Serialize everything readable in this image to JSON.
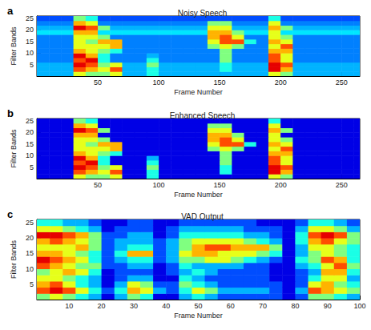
{
  "chart_data": [
    {
      "type": "heatmap",
      "panel_label": "a",
      "title": "Noisy Speech",
      "x_label": "Frame Number",
      "y_label": "Filter Bands",
      "xlim": [
        0,
        265
      ],
      "xticks": [
        50,
        100,
        150,
        200,
        250
      ],
      "ylim": [
        0,
        26
      ],
      "yticks": [
        5,
        10,
        15,
        20,
        25
      ],
      "zlim": [
        0,
        1
      ],
      "x": [
        5,
        15,
        25,
        35,
        45,
        55,
        65,
        75,
        85,
        95,
        105,
        115,
        125,
        135,
        145,
        155,
        165,
        175,
        185,
        195,
        205,
        215,
        225,
        235,
        245,
        255,
        265
      ],
      "y": [
        1,
        3,
        5,
        7,
        9,
        11,
        13,
        15,
        17,
        19,
        21,
        23,
        25
      ],
      "z": [
        [
          0.3,
          0.3,
          0.3,
          0.6,
          0.5,
          0.5,
          0.6,
          0.3,
          0.3,
          0.4,
          0.3,
          0.3,
          0.3,
          0.3,
          0.3,
          0.3,
          0.3,
          0.3,
          0.3,
          0.6,
          0.5,
          0.3,
          0.3,
          0.3,
          0.3,
          0.3,
          0.3
        ],
        [
          0.3,
          0.3,
          0.3,
          0.8,
          0.7,
          0.6,
          0.8,
          0.3,
          0.3,
          0.4,
          0.3,
          0.3,
          0.3,
          0.3,
          0.3,
          0.4,
          0.3,
          0.3,
          0.3,
          0.9,
          0.7,
          0.3,
          0.3,
          0.3,
          0.3,
          0.3,
          0.3
        ],
        [
          0.3,
          0.3,
          0.3,
          0.9,
          0.8,
          0.5,
          0.6,
          0.3,
          0.3,
          0.5,
          0.3,
          0.3,
          0.3,
          0.3,
          0.3,
          0.4,
          0.3,
          0.3,
          0.3,
          0.9,
          0.8,
          0.3,
          0.3,
          0.3,
          0.3,
          0.3,
          0.3
        ],
        [
          0.25,
          0.25,
          0.25,
          0.8,
          0.9,
          0.4,
          0.25,
          0.25,
          0.25,
          0.4,
          0.25,
          0.25,
          0.25,
          0.25,
          0.25,
          0.5,
          0.25,
          0.25,
          0.25,
          0.8,
          0.6,
          0.25,
          0.25,
          0.25,
          0.25,
          0.25,
          0.25
        ],
        [
          0.25,
          0.25,
          0.25,
          0.9,
          0.7,
          0.4,
          0.25,
          0.25,
          0.25,
          0.3,
          0.25,
          0.25,
          0.25,
          0.25,
          0.25,
          0.5,
          0.25,
          0.25,
          0.25,
          0.8,
          0.6,
          0.25,
          0.25,
          0.25,
          0.25,
          0.25,
          0.25
        ],
        [
          0.25,
          0.25,
          0.25,
          0.7,
          0.6,
          0.5,
          0.4,
          0.25,
          0.25,
          0.25,
          0.25,
          0.25,
          0.25,
          0.25,
          0.25,
          0.5,
          0.25,
          0.25,
          0.25,
          0.7,
          0.7,
          0.25,
          0.25,
          0.25,
          0.25,
          0.25,
          0.25
        ],
        [
          0.25,
          0.25,
          0.25,
          0.6,
          0.6,
          0.6,
          0.7,
          0.25,
          0.25,
          0.25,
          0.25,
          0.25,
          0.25,
          0.25,
          0.5,
          0.6,
          0.5,
          0.25,
          0.25,
          0.6,
          0.8,
          0.25,
          0.25,
          0.25,
          0.25,
          0.25,
          0.25
        ],
        [
          0.25,
          0.25,
          0.25,
          0.6,
          0.5,
          0.7,
          0.7,
          0.25,
          0.25,
          0.25,
          0.25,
          0.25,
          0.25,
          0.25,
          0.6,
          0.8,
          0.8,
          0.4,
          0.25,
          0.7,
          0.6,
          0.25,
          0.25,
          0.25,
          0.25,
          0.25,
          0.25
        ],
        [
          0.25,
          0.25,
          0.25,
          0.6,
          0.6,
          0.5,
          0.25,
          0.25,
          0.25,
          0.25,
          0.25,
          0.25,
          0.25,
          0.25,
          0.7,
          0.8,
          0.6,
          0.25,
          0.25,
          0.6,
          0.5,
          0.25,
          0.25,
          0.25,
          0.25,
          0.25,
          0.25
        ],
        [
          0.35,
          0.35,
          0.35,
          0.7,
          0.7,
          0.35,
          0.35,
          0.35,
          0.35,
          0.35,
          0.35,
          0.35,
          0.35,
          0.35,
          0.7,
          0.7,
          0.5,
          0.35,
          0.35,
          0.6,
          0.35,
          0.35,
          0.35,
          0.35,
          0.35,
          0.35,
          0.35
        ],
        [
          0.3,
          0.3,
          0.3,
          0.9,
          0.8,
          0.5,
          0.3,
          0.3,
          0.3,
          0.3,
          0.3,
          0.3,
          0.3,
          0.3,
          0.6,
          0.6,
          0.3,
          0.3,
          0.3,
          0.7,
          0.5,
          0.3,
          0.3,
          0.3,
          0.3,
          0.3,
          0.3
        ],
        [
          0.25,
          0.25,
          0.25,
          0.7,
          0.6,
          0.25,
          0.25,
          0.25,
          0.25,
          0.25,
          0.25,
          0.25,
          0.25,
          0.25,
          0.5,
          0.5,
          0.25,
          0.25,
          0.25,
          0.6,
          0.25,
          0.25,
          0.25,
          0.25,
          0.25,
          0.25,
          0.25
        ],
        [
          0.2,
          0.2,
          0.2,
          0.5,
          0.4,
          0.2,
          0.2,
          0.2,
          0.2,
          0.2,
          0.2,
          0.2,
          0.2,
          0.2,
          0.2,
          0.2,
          0.2,
          0.2,
          0.2,
          0.4,
          0.2,
          0.2,
          0.2,
          0.2,
          0.2,
          0.2,
          0.2
        ]
      ]
    },
    {
      "type": "heatmap",
      "panel_label": "b",
      "title": "Enhanced Speech",
      "x_label": "Frame Number",
      "y_label": "Filter Bands",
      "xlim": [
        0,
        265
      ],
      "xticks": [
        50,
        100,
        150,
        200,
        250
      ],
      "ylim": [
        0,
        26
      ],
      "yticks": [
        5,
        10,
        15,
        20,
        25
      ],
      "zlim": [
        0,
        1
      ],
      "x": [
        5,
        15,
        25,
        35,
        45,
        55,
        65,
        75,
        85,
        95,
        105,
        115,
        125,
        135,
        145,
        155,
        165,
        175,
        185,
        195,
        205,
        215,
        225,
        235,
        245,
        255,
        265
      ],
      "y": [
        1,
        3,
        5,
        7,
        9,
        11,
        13,
        15,
        17,
        19,
        21,
        23,
        25
      ],
      "z": [
        [
          0.1,
          0.1,
          0.1,
          0.6,
          0.5,
          0.5,
          0.6,
          0.1,
          0.1,
          0.4,
          0.1,
          0.1,
          0.1,
          0.1,
          0.1,
          0.1,
          0.1,
          0.1,
          0.1,
          0.6,
          0.5,
          0.1,
          0.1,
          0.1,
          0.1,
          0.1,
          0.1
        ],
        [
          0.1,
          0.1,
          0.1,
          0.8,
          0.7,
          0.6,
          0.8,
          0.1,
          0.1,
          0.4,
          0.1,
          0.1,
          0.1,
          0.1,
          0.1,
          0.4,
          0.1,
          0.1,
          0.1,
          0.9,
          0.7,
          0.1,
          0.1,
          0.1,
          0.1,
          0.1,
          0.1
        ],
        [
          0.1,
          0.1,
          0.1,
          0.9,
          0.8,
          0.5,
          0.6,
          0.1,
          0.1,
          0.5,
          0.1,
          0.1,
          0.1,
          0.1,
          0.1,
          0.4,
          0.1,
          0.1,
          0.1,
          0.9,
          0.8,
          0.1,
          0.1,
          0.1,
          0.1,
          0.1,
          0.1
        ],
        [
          0.1,
          0.1,
          0.1,
          0.8,
          0.9,
          0.4,
          0.1,
          0.1,
          0.1,
          0.4,
          0.1,
          0.1,
          0.1,
          0.1,
          0.1,
          0.5,
          0.1,
          0.1,
          0.1,
          0.8,
          0.6,
          0.1,
          0.1,
          0.1,
          0.1,
          0.1,
          0.1
        ],
        [
          0.1,
          0.1,
          0.1,
          0.9,
          0.7,
          0.4,
          0.1,
          0.1,
          0.1,
          0.3,
          0.1,
          0.1,
          0.1,
          0.1,
          0.1,
          0.5,
          0.1,
          0.1,
          0.1,
          0.8,
          0.6,
          0.1,
          0.1,
          0.1,
          0.1,
          0.1,
          0.1
        ],
        [
          0.1,
          0.1,
          0.1,
          0.7,
          0.6,
          0.5,
          0.4,
          0.1,
          0.1,
          0.1,
          0.1,
          0.1,
          0.1,
          0.1,
          0.1,
          0.5,
          0.1,
          0.1,
          0.1,
          0.7,
          0.7,
          0.1,
          0.1,
          0.1,
          0.1,
          0.1,
          0.1
        ],
        [
          0.1,
          0.1,
          0.1,
          0.6,
          0.6,
          0.6,
          0.7,
          0.1,
          0.1,
          0.1,
          0.1,
          0.1,
          0.1,
          0.1,
          0.5,
          0.6,
          0.5,
          0.1,
          0.1,
          0.6,
          0.8,
          0.1,
          0.1,
          0.1,
          0.1,
          0.1,
          0.1
        ],
        [
          0.1,
          0.1,
          0.1,
          0.6,
          0.5,
          0.7,
          0.7,
          0.1,
          0.1,
          0.1,
          0.1,
          0.1,
          0.1,
          0.1,
          0.6,
          0.8,
          0.8,
          0.4,
          0.1,
          0.7,
          0.6,
          0.1,
          0.1,
          0.1,
          0.1,
          0.1,
          0.1
        ],
        [
          0.1,
          0.1,
          0.1,
          0.6,
          0.6,
          0.5,
          0.1,
          0.1,
          0.1,
          0.1,
          0.1,
          0.1,
          0.1,
          0.1,
          0.7,
          0.8,
          0.6,
          0.1,
          0.1,
          0.6,
          0.5,
          0.1,
          0.1,
          0.1,
          0.1,
          0.1,
          0.1
        ],
        [
          0.1,
          0.1,
          0.1,
          0.7,
          0.7,
          0.1,
          0.1,
          0.1,
          0.1,
          0.1,
          0.1,
          0.1,
          0.1,
          0.1,
          0.7,
          0.7,
          0.5,
          0.1,
          0.1,
          0.6,
          0.1,
          0.1,
          0.1,
          0.1,
          0.1,
          0.1,
          0.1
        ],
        [
          0.1,
          0.1,
          0.1,
          0.9,
          0.8,
          0.5,
          0.1,
          0.1,
          0.1,
          0.1,
          0.1,
          0.1,
          0.1,
          0.1,
          0.6,
          0.6,
          0.1,
          0.1,
          0.1,
          0.7,
          0.5,
          0.1,
          0.1,
          0.1,
          0.1,
          0.1,
          0.1
        ],
        [
          0.1,
          0.1,
          0.1,
          0.7,
          0.6,
          0.1,
          0.1,
          0.1,
          0.1,
          0.1,
          0.1,
          0.1,
          0.1,
          0.1,
          0.5,
          0.5,
          0.1,
          0.1,
          0.1,
          0.6,
          0.1,
          0.1,
          0.1,
          0.1,
          0.1,
          0.1,
          0.1
        ],
        [
          0.1,
          0.1,
          0.1,
          0.5,
          0.4,
          0.1,
          0.1,
          0.1,
          0.1,
          0.1,
          0.1,
          0.1,
          0.1,
          0.1,
          0.1,
          0.1,
          0.1,
          0.1,
          0.1,
          0.4,
          0.1,
          0.1,
          0.1,
          0.1,
          0.1,
          0.1,
          0.1
        ]
      ]
    },
    {
      "type": "heatmap",
      "panel_label": "c",
      "title": "VAD Output",
      "x_label": "Frame Number",
      "y_label": "Filter Bands",
      "xlim": [
        0,
        100
      ],
      "xticks": [
        10,
        20,
        30,
        40,
        50,
        60,
        70,
        80,
        90,
        100
      ],
      "ylim": [
        0,
        26
      ],
      "yticks": [
        5,
        10,
        15,
        20,
        25
      ],
      "zlim": [
        0,
        1
      ],
      "x": [
        2,
        6,
        10,
        14,
        18,
        22,
        26,
        30,
        34,
        38,
        42,
        46,
        50,
        54,
        58,
        62,
        66,
        70,
        74,
        78,
        82,
        86,
        90,
        94,
        98
      ],
      "y": [
        1,
        3,
        5,
        7,
        9,
        11,
        13,
        15,
        17,
        19,
        21,
        23,
        25
      ],
      "z": [
        [
          0.5,
          0.6,
          0.5,
          0.4,
          0.3,
          0.1,
          0.3,
          0.5,
          0.4,
          0.1,
          0.1,
          0.3,
          0.4,
          0.3,
          0.2,
          0.2,
          0.2,
          0.2,
          0.2,
          0.1,
          0.2,
          0.5,
          0.5,
          0.4,
          0.3
        ],
        [
          0.8,
          0.9,
          0.8,
          0.6,
          0.4,
          0.2,
          0.4,
          0.7,
          0.6,
          0.3,
          0.2,
          0.4,
          0.6,
          0.5,
          0.3,
          0.3,
          0.3,
          0.3,
          0.2,
          0.1,
          0.3,
          0.8,
          0.7,
          0.6,
          0.5
        ],
        [
          0.7,
          0.8,
          0.6,
          0.4,
          0.3,
          0.1,
          0.3,
          0.6,
          0.5,
          0.2,
          0.2,
          0.5,
          0.4,
          0.3,
          0.2,
          0.2,
          0.2,
          0.2,
          0.2,
          0.1,
          0.2,
          0.6,
          0.7,
          0.5,
          0.4
        ],
        [
          0.6,
          0.6,
          0.5,
          0.4,
          0.3,
          0.1,
          0.2,
          0.3,
          0.3,
          0.1,
          0.1,
          0.4,
          0.3,
          0.2,
          0.2,
          0.2,
          0.2,
          0.2,
          0.1,
          0.1,
          0.2,
          0.4,
          0.6,
          0.6,
          0.3
        ],
        [
          0.5,
          0.6,
          0.7,
          0.6,
          0.4,
          0.1,
          0.2,
          0.2,
          0.2,
          0.1,
          0.2,
          0.3,
          0.4,
          0.3,
          0.2,
          0.2,
          0.2,
          0.2,
          0.1,
          0.1,
          0.2,
          0.3,
          0.7,
          0.7,
          0.4
        ],
        [
          0.8,
          0.7,
          0.6,
          0.5,
          0.5,
          0.2,
          0.2,
          0.3,
          0.3,
          0.1,
          0.2,
          0.4,
          0.3,
          0.3,
          0.3,
          0.3,
          0.2,
          0.2,
          0.1,
          0.1,
          0.3,
          0.4,
          0.6,
          0.8,
          0.5
        ],
        [
          0.9,
          0.8,
          0.7,
          0.6,
          0.4,
          0.2,
          0.3,
          0.4,
          0.4,
          0.2,
          0.3,
          0.5,
          0.5,
          0.6,
          0.6,
          0.5,
          0.4,
          0.3,
          0.2,
          0.1,
          0.4,
          0.5,
          0.8,
          0.7,
          0.4
        ],
        [
          0.7,
          0.7,
          0.6,
          0.5,
          0.4,
          0.2,
          0.4,
          0.7,
          0.7,
          0.2,
          0.3,
          0.6,
          0.7,
          0.7,
          0.6,
          0.6,
          0.6,
          0.5,
          0.4,
          0.1,
          0.3,
          0.5,
          0.6,
          0.5,
          0.4
        ],
        [
          0.6,
          0.6,
          0.6,
          0.7,
          0.5,
          0.2,
          0.3,
          0.4,
          0.4,
          0.2,
          0.3,
          0.5,
          0.7,
          0.8,
          0.8,
          0.7,
          0.7,
          0.7,
          0.5,
          0.1,
          0.3,
          0.6,
          0.6,
          0.5,
          0.4
        ],
        [
          0.7,
          0.8,
          0.7,
          0.6,
          0.5,
          0.2,
          0.3,
          0.3,
          0.3,
          0.2,
          0.3,
          0.5,
          0.6,
          0.6,
          0.6,
          0.6,
          0.5,
          0.4,
          0.3,
          0.1,
          0.4,
          0.7,
          0.8,
          0.6,
          0.5
        ],
        [
          0.9,
          0.9,
          0.8,
          0.7,
          0.5,
          0.2,
          0.2,
          0.3,
          0.3,
          0.1,
          0.2,
          0.4,
          0.4,
          0.4,
          0.4,
          0.4,
          0.3,
          0.3,
          0.2,
          0.1,
          0.4,
          0.8,
          0.9,
          0.8,
          0.5
        ],
        [
          0.6,
          0.6,
          0.5,
          0.4,
          0.3,
          0.1,
          0.2,
          0.2,
          0.2,
          0.1,
          0.2,
          0.3,
          0.3,
          0.3,
          0.3,
          0.3,
          0.2,
          0.2,
          0.2,
          0.1,
          0.3,
          0.6,
          0.6,
          0.5,
          0.3
        ],
        [
          0.4,
          0.4,
          0.3,
          0.3,
          0.2,
          0.1,
          0.1,
          0.2,
          0.2,
          0.1,
          0.1,
          0.2,
          0.2,
          0.2,
          0.2,
          0.2,
          0.2,
          0.1,
          0.1,
          0.1,
          0.2,
          0.4,
          0.4,
          0.3,
          0.2
        ]
      ]
    }
  ]
}
